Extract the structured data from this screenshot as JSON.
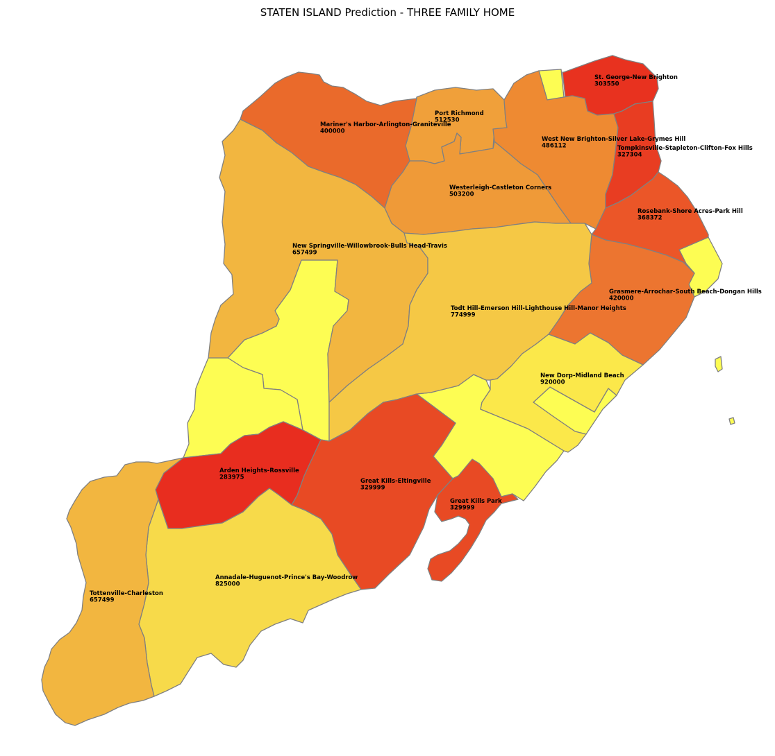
{
  "title": "STATEN ISLAND Prediction - THREE FAMILY HOME",
  "neighborhoods": [
    {
      "name": "St. George-New Brighton",
      "value": "303550",
      "color": "#e8321f"
    },
    {
      "name": "Port Richmond",
      "value": "512530",
      "color": "#f0a03a"
    },
    {
      "name": "Mariner's Harbor-Arlington-Graniteville",
      "value": "400000",
      "color": "#ea6a2b"
    },
    {
      "name": "West New Brighton-Silver Lake-Grymes Hill",
      "value": "486112",
      "color": "#ee8a32"
    },
    {
      "name": "Tompkinsville-Stapleton-Clifton-Fox Hills",
      "value": "327304",
      "color": "#e83d22"
    },
    {
      "name": "Westerleigh-Castleton Corners",
      "value": "503200",
      "color": "#ef9a38"
    },
    {
      "name": "Rosebank-Shore Acres-Park Hill",
      "value": "368372",
      "color": "#eb5628"
    },
    {
      "name": "New Springville-Willowbrook-Bulls Head-Travis",
      "value": "657499",
      "color": "#f2b640"
    },
    {
      "name": "Grasmere-Arrochar-South Beach-Dongan Hills",
      "value": "420000",
      "color": "#ec7530"
    },
    {
      "name": "Todt Hill-Emerson Hill-Lighthouse Hill-Manor Heights",
      "value": "774999",
      "color": "#f5c845"
    },
    {
      "name": "New Dorp-Midland Beach",
      "value": "920000",
      "color": "#fbe84a"
    },
    {
      "name": "Arden Heights-Rossville",
      "value": "283975",
      "color": "#e82d1f"
    },
    {
      "name": "Great Kills-Eltingville",
      "value": "329999",
      "color": "#e84a24"
    },
    {
      "name": "Great Kills Park",
      "value": "329999",
      "color": "#e84a24"
    },
    {
      "name": "Annadale-Huguenot-Prince's Bay-Woodrow",
      "value": "825000",
      "color": "#f7da4a"
    },
    {
      "name": "Tottenville-Charleston",
      "value": "657499",
      "color": "#f2b640"
    }
  ],
  "no_data_color": "#fdfd53"
}
